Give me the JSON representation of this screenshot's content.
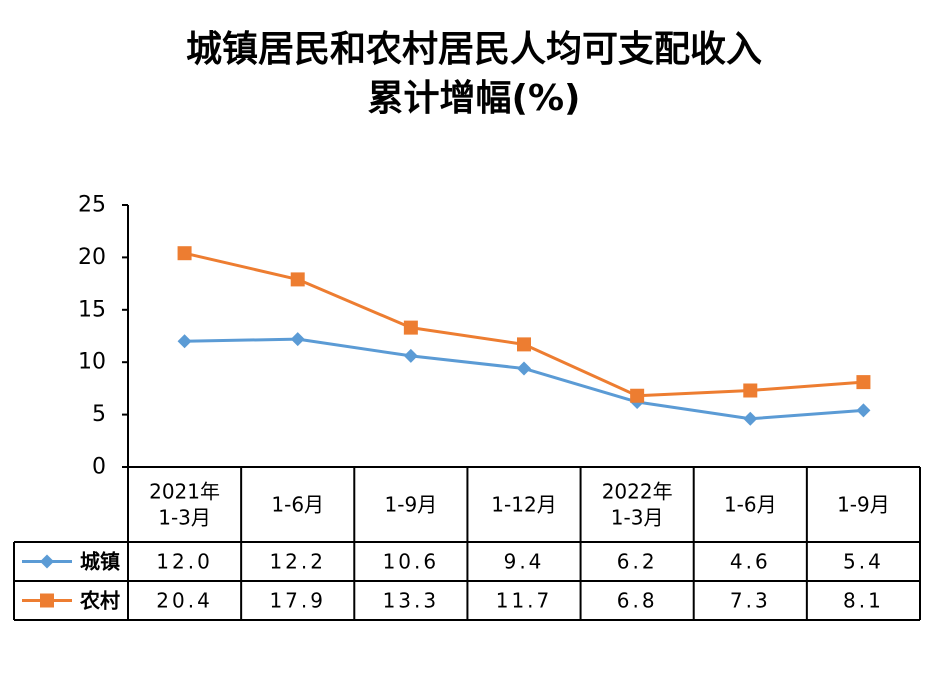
{
  "chart_data": {
    "type": "line",
    "title_line1": "城镇居民和农村居民人均可支配收入",
    "title_line2": "累计增幅(%)",
    "categories": [
      [
        "2021年",
        "1-3月"
      ],
      [
        "1-6月"
      ],
      [
        "1-9月"
      ],
      [
        "1-12月"
      ],
      [
        "2022年",
        "1-3月"
      ],
      [
        "1-6月"
      ],
      [
        "1-9月"
      ]
    ],
    "series": [
      {
        "name": "城镇",
        "color": "#5B9BD5",
        "marker": "diamond",
        "values": [
          12.0,
          12.2,
          10.6,
          9.4,
          6.2,
          4.6,
          5.4
        ],
        "labels": [
          "12.0",
          "12.2",
          "10.6",
          "9.4",
          "6.2",
          "4.6",
          "5.4"
        ]
      },
      {
        "name": "农村",
        "color": "#ED7D31",
        "marker": "square",
        "values": [
          20.4,
          17.9,
          13.3,
          11.7,
          6.8,
          7.3,
          8.1
        ],
        "labels": [
          "20.4",
          "17.9",
          "13.3",
          "11.7",
          "6.8",
          "7.3",
          "8.1"
        ]
      }
    ],
    "yticks": [
      0,
      5,
      10,
      15,
      20,
      25
    ],
    "ylim": [
      0,
      25
    ],
    "grid": false,
    "legend": "data-table"
  }
}
